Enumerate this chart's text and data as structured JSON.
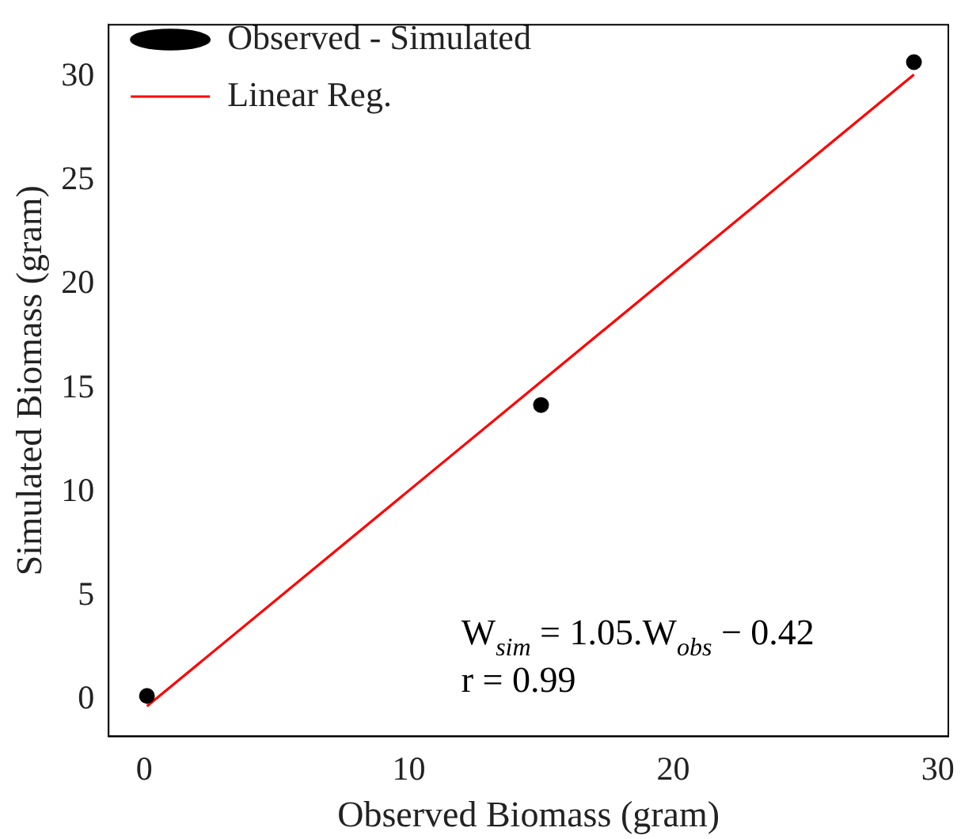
{
  "chart_data": {
    "type": "scatter",
    "xlabel": "Observed Biomass (gram)",
    "ylabel": "Simulated Biomass (gram)",
    "series": [
      {
        "name": "Observed - Simulated",
        "color": "#000000",
        "marker": "circle",
        "x": [
          0.1,
          15,
          29.1
        ],
        "values": [
          0.2,
          14.2,
          30.7
        ]
      },
      {
        "name": "Linear Reg.",
        "type": "line",
        "color": "#ff0000",
        "marker": "none",
        "x": [
          0.1,
          29.1
        ],
        "values": [
          -0.3,
          30.1
        ]
      }
    ],
    "xlim": [
      -1.35,
      30.4
    ],
    "ylim": [
      -1.75,
      32.5
    ],
    "xticks": [
      0,
      10,
      20,
      30
    ],
    "yticks": [
      0,
      5,
      10,
      15,
      20,
      25,
      30
    ],
    "grid": false,
    "legend": "top left",
    "line_style": "solid",
    "annotations": [
      "W$_{sim}$ = 1.05.W$_{obs}$ − 0.42",
      "r = 0.99"
    ]
  }
}
